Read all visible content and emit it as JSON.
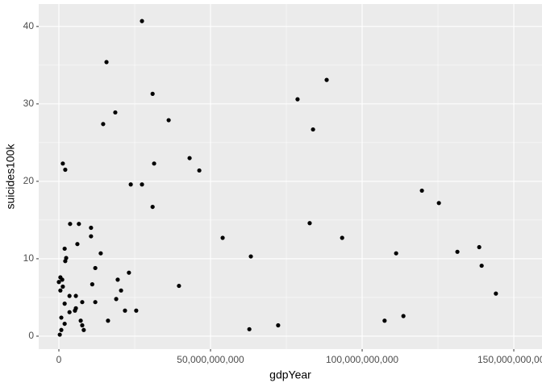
{
  "chart_data": {
    "type": "scatter",
    "x_label": "gdpYear",
    "y_label": "suicides100k",
    "color": "#000000",
    "grid": true,
    "xlim": [
      -6650000000,
      159300000000
    ],
    "ylim": [
      -1.67,
      42.9
    ],
    "xticks": [
      {
        "value": 0,
        "label": "0"
      },
      {
        "value": 50000000000,
        "label": "50,000,000,000"
      },
      {
        "value": 100000000000,
        "label": "100,000,000,000"
      },
      {
        "value": 150000000000,
        "label": "150,000,000,000"
      }
    ],
    "yticks": [
      0,
      10,
      20,
      30,
      40
    ],
    "x": [
      27400000000.0,
      15700000000.0,
      88300000000.0,
      78700000000.0,
      30900000000.0,
      18600000000.0,
      14600000000.0,
      36200000000.0,
      83800000000.0,
      43100000000.0,
      46300000000.0,
      1300000000.0,
      2100000000.0,
      31400000000.0,
      23700000000.0,
      27400000000.0,
      119700000000.0,
      125300000000.0,
      30900000000.0,
      3700000000.0,
      6600000000.0,
      82700000000.0,
      10600000000.0,
      10600000000.0,
      54000000000.0,
      93400000000.0,
      6100000000.0,
      1900000000.0,
      138600000000.0,
      131400000000.0,
      111200000000.0,
      13800000000.0,
      63300000000.0,
      2400000000.0,
      2100000000.0,
      139400000000.0,
      12000000000.0,
      23100000000.0,
      500000000.0,
      1100000000.0,
      0,
      19400000000.0,
      11000000000.0,
      1300000000.0,
      39600000000.0,
      500000000.0,
      20500000000.0,
      144100000000.0,
      3500000000.0,
      5600000000.0,
      18900000000.0,
      1900000000.0,
      7700000000.0,
      12000000000.0,
      5600000000.0,
      5300000000.0,
      21800000000.0,
      25500000000.0,
      3500000000.0,
      113600000000.0,
      800000000.0,
      7200000000.0,
      16200000000.0,
      107400000000.0,
      1900000000.0,
      7700000000.0,
      72300000000.0,
      800000000.0,
      8200000000.0,
      62800000000.0,
      300000000.0
    ],
    "values": [
      40.7,
      35.4,
      33.1,
      30.6,
      31.3,
      28.9,
      27.4,
      27.9,
      26.7,
      23.0,
      21.4,
      22.3,
      21.5,
      22.3,
      19.6,
      19.6,
      18.8,
      17.2,
      16.7,
      14.5,
      14.5,
      14.6,
      14.0,
      12.9,
      12.7,
      12.7,
      11.9,
      11.3,
      11.5,
      10.9,
      10.7,
      10.7,
      10.3,
      10.1,
      9.7,
      9.1,
      8.8,
      8.2,
      7.6,
      7.3,
      7.0,
      7.3,
      6.7,
      6.4,
      6.5,
      5.9,
      5.9,
      5.5,
      5.2,
      5.2,
      4.8,
      4.2,
      4.4,
      4.4,
      3.6,
      3.3,
      3.3,
      3.3,
      3.1,
      2.6,
      2.4,
      2.0,
      2.0,
      2.0,
      1.6,
      1.4,
      1.4,
      0.8,
      0.8,
      0.9,
      0.2
    ]
  }
}
